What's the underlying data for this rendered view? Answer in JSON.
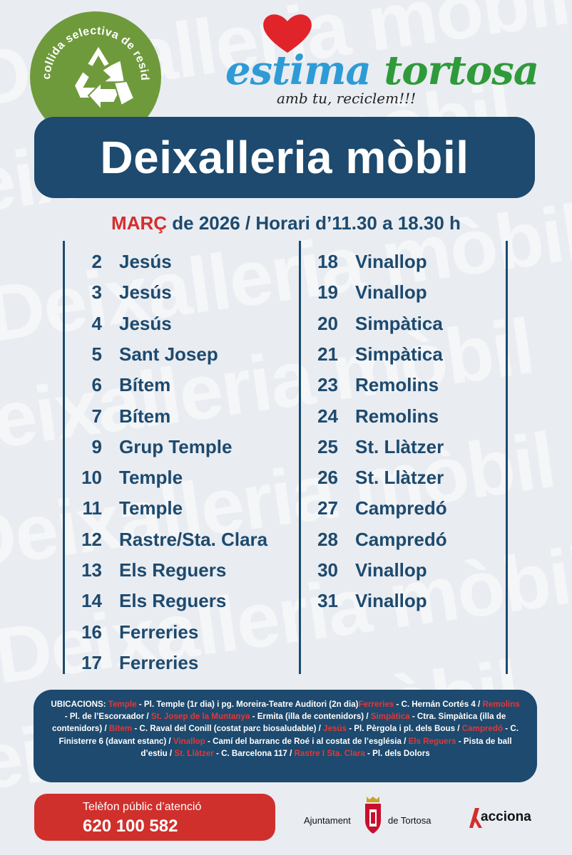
{
  "colors": {
    "navy": "#1d4a6e",
    "red": "#d62d2d",
    "green": "#6f9a3c",
    "bg": "#e9ecf1"
  },
  "watermark": [
    "Deixalleria mòbil",
    "Deixalleria mòbil",
    "Deixalleria mòbil",
    "Deixalleria mòbil",
    "Deixalleria mòbil",
    "Deixalleria mòbil",
    "Deixalleria mòbil"
  ],
  "logo_recycle": {
    "text": "Recollida selectiva de residus",
    "icon": "recycle-icon"
  },
  "brand": {
    "word1": "estima",
    "word2": "tortosa",
    "slogan": "amb tu, reciclem!!!",
    "icon": "heart-icon"
  },
  "title": "Deixalleria mòbil",
  "subheading": {
    "month": "MARÇ",
    "rest": " de 2026 / Horari d’11.30 a 18.30 h"
  },
  "schedule_left": [
    {
      "day": "2",
      "place": "Jesús"
    },
    {
      "day": "3",
      "place": "Jesús"
    },
    {
      "day": "4",
      "place": "Jesús"
    },
    {
      "day": "5",
      "place": "Sant Josep"
    },
    {
      "day": "6",
      "place": "Bítem"
    },
    {
      "day": "7",
      "place": "Bítem"
    },
    {
      "day": "9",
      "place": "Grup Temple"
    },
    {
      "day": "10",
      "place": "Temple"
    },
    {
      "day": "11",
      "place": "Temple"
    },
    {
      "day": "12",
      "place": "Rastre/Sta. Clara"
    },
    {
      "day": "13",
      "place": "Els Reguers"
    },
    {
      "day": "14",
      "place": "Els Reguers"
    },
    {
      "day": "16",
      "place": "Ferreries"
    },
    {
      "day": "17",
      "place": "Ferreries"
    }
  ],
  "schedule_right": [
    {
      "day": "18",
      "place": "Vinallop"
    },
    {
      "day": "19",
      "place": "Vinallop"
    },
    {
      "day": "20",
      "place": "Simpàtica"
    },
    {
      "day": "21",
      "place": "Simpàtica"
    },
    {
      "day": "23",
      "place": "Remolins"
    },
    {
      "day": "24",
      "place": "Remolins"
    },
    {
      "day": "25",
      "place": "St. Llàtzer"
    },
    {
      "day": "26",
      "place": "St. Llàtzer"
    },
    {
      "day": "27",
      "place": "Campredó"
    },
    {
      "day": "28",
      "place": "Campredó"
    },
    {
      "day": "30",
      "place": "Vinallop"
    },
    {
      "day": "31",
      "place": "Vinallop"
    }
  ],
  "locations": {
    "label": "UBICACIONS: ",
    "segments": [
      {
        "h": "Temple",
        "t": " - Pl. Temple (1r dia) i pg. Moreira-Teatre Auditori (2n dia)"
      },
      {
        "h": "Ferreries",
        "t": " - C. Hernán Cortés 4 / "
      },
      {
        "h": "Remolins",
        "t": " - Pl. de l’Escorxador  / "
      },
      {
        "h": "St. Josep de la Muntanya",
        "t": " - Ermita (illa de contenidors) / "
      },
      {
        "h": "Simpàtica",
        "t": " - Ctra. Simpàtica (illa de contenidors) / "
      },
      {
        "h": "Bítem",
        "t": " - C. Raval del Conill (costat parc biosaludable) / "
      },
      {
        "h": "Jesús",
        "t": " - Pl. Pèrgola i pl. dels Bous / "
      },
      {
        "h": "Campredó",
        "t": " - C. Finisterre 6 (davant estanc) / "
      },
      {
        "h": "Vinallop",
        "t": " - Camí del barranc de Roé i al costat de l’església / "
      },
      {
        "h": "Els Reguers",
        "t": " - Pista de ball d’estiu / "
      },
      {
        "h": "St. Llàtzer",
        "t": " - C. Barcelona 117 / "
      },
      {
        "h": "Rastre I Sta. Clara",
        "t": " - Pl. dels Dolors"
      }
    ]
  },
  "phone": {
    "label": "Telèfon públic d’atenció",
    "number": "620 100 582"
  },
  "ajuntament": {
    "left": "Ajuntament",
    "right": "de Tortosa",
    "icon": "town-crest-icon"
  },
  "acciona": {
    "text": "acciona",
    "icon": "acciona-logo-icon"
  }
}
